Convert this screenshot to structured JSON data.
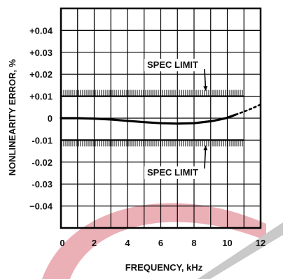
{
  "chart_data": {
    "type": "line",
    "title": "",
    "xlabel": "FREQUENCY, kHz",
    "ylabel": "NONLINEARITY ERROR, %",
    "xlim": [
      0,
      12
    ],
    "ylim": [
      -0.05,
      0.05
    ],
    "x_ticks": [
      0,
      2,
      4,
      6,
      8,
      10,
      12
    ],
    "x_tick_labels": [
      "0",
      "2",
      "4",
      "6",
      "8",
      "10",
      "12"
    ],
    "y_ticks": [
      0.04,
      0.03,
      0.02,
      0.01,
      0,
      -0.01,
      -0.02,
      -0.03,
      -0.04
    ],
    "y_tick_labels": [
      "+0.04",
      "+0.03",
      "+0.02",
      "+0.01",
      "0",
      "-0.01",
      "-0.02",
      "-0.03",
      "−0.04"
    ],
    "grid": true,
    "series": [
      {
        "x": [
          0,
          1,
          2,
          3,
          4,
          5,
          6,
          7,
          8,
          9,
          9.5,
          10,
          10.5
        ],
        "values": [
          0,
          0,
          -0.0002,
          -0.0006,
          -0.0012,
          -0.0018,
          -0.0023,
          -0.0025,
          -0.0023,
          -0.0014,
          -0.0007,
          0.0002,
          0.0016
        ],
        "color": "#000000"
      },
      {
        "x": [
          10.5,
          11,
          11.5,
          12
        ],
        "values": [
          0.0016,
          0.003,
          0.0045,
          0.0062
        ],
        "color": "#000000",
        "style": "dotted"
      }
    ],
    "spec_limits": [
      {
        "value": 0.01,
        "x_start": 0,
        "x_end": 11
      },
      {
        "value": -0.01,
        "x_start": 0,
        "x_end": 11
      }
    ],
    "annotations": [
      {
        "text": "SPEC LIMIT",
        "target_value": 0.01
      },
      {
        "text": "SPEC LIMIT",
        "target_value": -0.01
      }
    ],
    "watermark_colors": {
      "red": "#e9a6ae",
      "gray": "#c9c9c9"
    }
  }
}
